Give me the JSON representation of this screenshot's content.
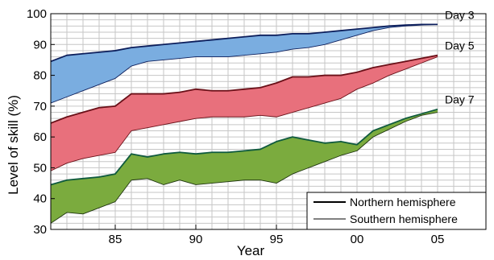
{
  "chart_data": {
    "type": "area",
    "title": "",
    "xlabel": "Year",
    "ylabel": "Level of skill (%)",
    "xlim": [
      1981,
      2008
    ],
    "ylim": [
      30,
      100
    ],
    "x_tick_values": [
      1985,
      1990,
      1995,
      2000,
      2005
    ],
    "x_tick_labels": [
      "85",
      "90",
      "95",
      "00",
      "05"
    ],
    "y_tick_values": [
      30,
      40,
      50,
      60,
      70,
      80,
      90,
      100
    ],
    "y_tick_labels": [
      "30",
      "40",
      "50",
      "60",
      "70",
      "80",
      "90",
      "100"
    ],
    "grid": true,
    "legend_position": "bottom-right",
    "legend": [
      {
        "label": "Northern hemisphere",
        "line": "thick"
      },
      {
        "label": "Southern hemisphere",
        "line": "thin"
      }
    ],
    "x": [
      1981,
      1982,
      1983,
      1984,
      1985,
      1986,
      1987,
      1988,
      1989,
      1990,
      1991,
      1992,
      1993,
      1994,
      1995,
      1996,
      1997,
      1998,
      1999,
      2000,
      2001,
      2002,
      2003,
      2004,
      2005
    ],
    "bands": [
      {
        "name": "Day 3",
        "fill": "#7aade0",
        "northern_color": "#0d1f5c",
        "southern_color": "#0d1f5c",
        "northern": [
          84.5,
          86.5,
          87,
          87.5,
          88,
          89,
          89.5,
          90,
          90.5,
          91,
          91.5,
          92,
          92.5,
          93,
          93,
          93.5,
          93.5,
          94,
          94.5,
          95,
          95.5,
          96,
          96.3,
          96.5,
          96.5
        ],
        "southern": [
          71,
          73,
          75,
          77,
          79,
          83,
          84.5,
          85,
          85.5,
          86,
          86,
          86,
          86.5,
          87,
          87.5,
          88.5,
          89,
          90,
          91.5,
          93,
          94.5,
          95.5,
          96,
          96.3,
          96.5
        ]
      },
      {
        "name": "Day 5",
        "fill": "#e8707c",
        "northern_color": "#6a1018",
        "southern_color": "#6a1018",
        "northern": [
          64.5,
          66.5,
          68,
          69.5,
          70,
          74,
          74,
          74,
          74.5,
          75.5,
          75,
          75,
          75.5,
          76,
          77.5,
          79.5,
          79.5,
          80,
          80,
          81,
          82.5,
          83.5,
          84.5,
          85.5,
          86.5
        ],
        "southern": [
          49,
          51.5,
          53,
          54,
          55,
          62,
          63,
          64,
          65,
          66,
          66.5,
          66.5,
          66.5,
          67,
          66.5,
          68,
          69.5,
          71,
          72.5,
          75.5,
          77.5,
          80,
          82,
          84,
          86
        ]
      },
      {
        "name": "Day 7",
        "fill": "#7bab3e",
        "northern_color": "#0f5a3e",
        "southern_color": "#1f3510",
        "northern": [
          44.5,
          46,
          46.5,
          47,
          48,
          54.5,
          53.5,
          54.5,
          55,
          54.5,
          55,
          55,
          55.5,
          56,
          58.5,
          60,
          59,
          58,
          58.5,
          57.5,
          62,
          64,
          66,
          67.5,
          69
        ],
        "southern": [
          32,
          35.5,
          35,
          37,
          39,
          46,
          46.5,
          44.5,
          46,
          44.5,
          45,
          45.5,
          46,
          46,
          45,
          48,
          50,
          52,
          54,
          55.5,
          60,
          62.5,
          65,
          67,
          68
        ]
      }
    ]
  }
}
